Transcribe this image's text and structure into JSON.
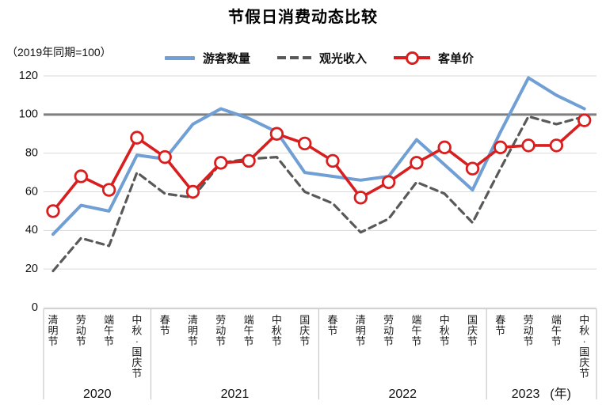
{
  "title": "节假日消费动态比较",
  "baseline_note": "（2019年同期=100）",
  "colors": {
    "tourists": "#6f9fd4",
    "revenue": "#595959",
    "price": "#d81e1e",
    "reference_line": "#7f7f7f",
    "gridline": "#d9d9d9",
    "axis": "#bfbfbf",
    "text": "#1a1a1a"
  },
  "chart_data": {
    "type": "line",
    "title": "节假日消费动态比较",
    "note": "（2019年同期=100）",
    "categories": [
      "清明节",
      "劳动节",
      "端午节",
      "中秋·国庆节",
      "春节",
      "清明节",
      "劳动节",
      "端午节",
      "中秋节",
      "国庆节",
      "春节",
      "清明节",
      "劳动节",
      "端午节",
      "中秋节",
      "国庆节",
      "春节",
      "劳动节",
      "端午节",
      "中秋·国庆节"
    ],
    "groups": [
      {
        "year": "2020",
        "count": 4
      },
      {
        "year": "2021",
        "count": 6
      },
      {
        "year": "2022",
        "count": 6
      },
      {
        "year": "2023",
        "count": 4
      }
    ],
    "x_axis_unit": "(年)",
    "series": [
      {
        "name": "游客数量",
        "style": "solid",
        "color": "#6f9fd4",
        "values": [
          38,
          53,
          50,
          79,
          77,
          95,
          103,
          98,
          91,
          70,
          68,
          66,
          68,
          87,
          74,
          61,
          91,
          119,
          110,
          103
        ]
      },
      {
        "name": "观光收入",
        "style": "dashed",
        "color": "#595959",
        "values": [
          19,
          36,
          32,
          70,
          59,
          57,
          75,
          77,
          78,
          60,
          54,
          39,
          46,
          65,
          59,
          44,
          72,
          99,
          95,
          99
        ]
      },
      {
        "name": "客单价",
        "style": "solid-circle-marker",
        "color": "#d81e1e",
        "values": [
          50,
          68,
          61,
          88,
          78,
          60,
          75,
          76,
          90,
          85,
          76,
          57,
          65,
          75,
          83,
          72,
          83,
          84,
          84,
          97
        ]
      }
    ],
    "ylim": [
      0,
      120
    ],
    "yticks": [
      0,
      20,
      40,
      60,
      80,
      100,
      120
    ],
    "reference_line": 100,
    "grid": true,
    "legend_position": "top"
  }
}
